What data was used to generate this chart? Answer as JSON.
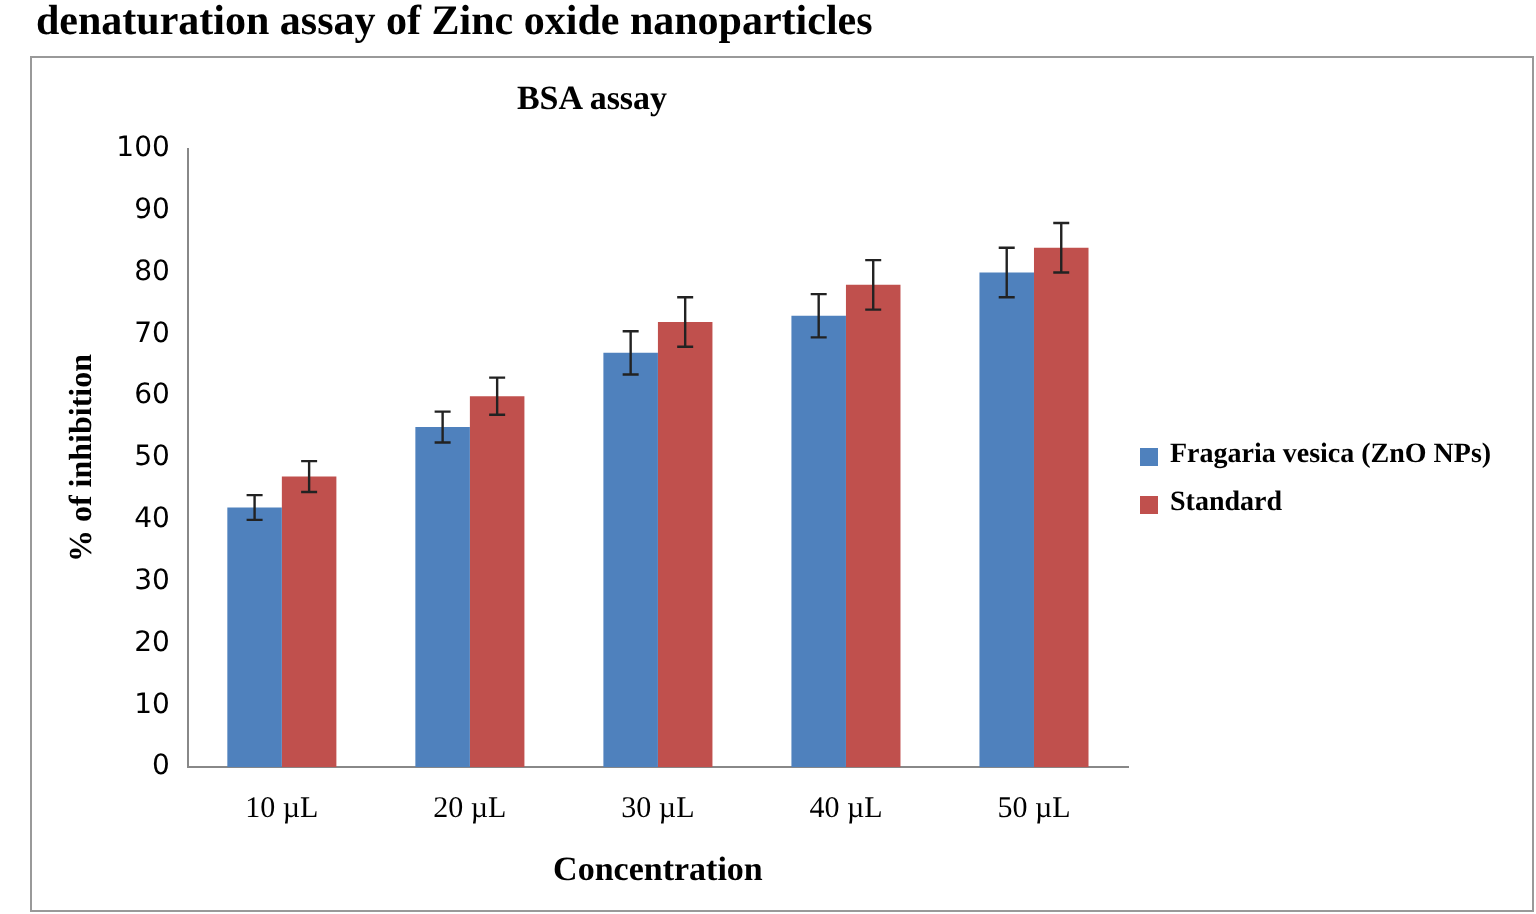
{
  "chart_data": {
    "type": "bar",
    "title": "BSA assay",
    "xlabel": "Concentration",
    "ylabel": "% of inhibition",
    "annotations": [
      "denaturation assay of Zinc oxide nanoparticles"
    ],
    "categories": [
      "10 µL",
      "20 µL",
      "30 µL",
      "40 µL",
      "50 µL"
    ],
    "series": [
      {
        "name": "Fragaria vesica (ZnO NPs)",
        "color": "#4f81bd",
        "values": [
          42,
          55,
          67,
          73,
          80
        ],
        "errors": [
          2,
          2.5,
          3.5,
          3.5,
          4
        ]
      },
      {
        "name": "Standard",
        "color": "#c0504d",
        "values": [
          47,
          60,
          72,
          78,
          84
        ],
        "errors": [
          2.5,
          3,
          4,
          4,
          4
        ]
      }
    ],
    "ylim": [
      0,
      100
    ],
    "yticks": [
      0,
      10,
      20,
      30,
      40,
      50,
      60,
      70,
      80,
      90,
      100
    ],
    "grid": false,
    "legend": "right"
  }
}
